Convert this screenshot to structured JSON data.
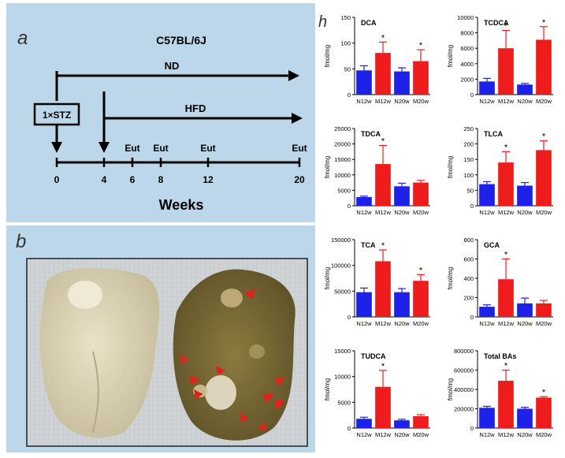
{
  "panel_a": {
    "letter": "a",
    "strain": "C57BL/6J",
    "nd_label": "ND",
    "hfd_label": "HFD",
    "stz_label": "1×STZ",
    "eut_label": "Eut",
    "weeks_label": "Weeks",
    "ticks": [
      "0",
      "4",
      "6",
      "8",
      "12",
      "20"
    ],
    "colors": {
      "background": "#bcd6ea",
      "line": "#000000"
    }
  },
  "panel_b": {
    "letter": "b",
    "arrow_color": "#e0241c"
  },
  "panel_h": {
    "letter": "h"
  },
  "chart_data": [
    {
      "type": "bar",
      "title": "DCA",
      "ylabel": "fmol/mg",
      "categories": [
        "N12w",
        "M12w",
        "N20w",
        "M20w"
      ],
      "values": [
        47,
        81,
        45,
        65
      ],
      "errors": [
        9,
        21,
        7,
        22
      ],
      "significant": [
        false,
        true,
        false,
        true
      ],
      "ylim": [
        0,
        150
      ],
      "yticks": [
        "0",
        "50",
        "100",
        "150"
      ]
    },
    {
      "type": "bar",
      "title": "TCDCA",
      "ylabel": "fmol/mg",
      "categories": [
        "N12w",
        "M12w",
        "N20w",
        "M20w"
      ],
      "values": [
        1700,
        6000,
        1300,
        7100
      ],
      "errors": [
        400,
        2300,
        150,
        1700
      ],
      "significant": [
        false,
        true,
        false,
        true
      ],
      "ylim": [
        0,
        10000
      ],
      "yticks": [
        "0",
        "2000",
        "4000",
        "6000",
        "8000",
        "10000"
      ]
    },
    {
      "type": "bar",
      "title": "TDCA",
      "ylabel": "fmol/mg",
      "categories": [
        "N12w",
        "M12w",
        "N20w",
        "M20w"
      ],
      "values": [
        2800,
        13500,
        6300,
        7500
      ],
      "errors": [
        300,
        6000,
        1000,
        700
      ],
      "significant": [
        false,
        true,
        false,
        false
      ],
      "ylim": [
        0,
        25000
      ],
      "yticks": [
        "0",
        "5000",
        "10000",
        "15000",
        "20000",
        "25000"
      ]
    },
    {
      "type": "bar",
      "title": "TLCA",
      "ylabel": "fmol/mg",
      "categories": [
        "N12w",
        "M12w",
        "N20w",
        "M20w"
      ],
      "values": [
        70,
        140,
        65,
        180
      ],
      "errors": [
        8,
        35,
        10,
        30
      ],
      "significant": [
        false,
        true,
        false,
        true
      ],
      "ylim": [
        0,
        250
      ],
      "yticks": [
        "0",
        "50",
        "100",
        "150",
        "200",
        "250"
      ]
    },
    {
      "type": "bar",
      "title": "TCA",
      "ylabel": "fmol/mg",
      "categories": [
        "N12w",
        "M12w",
        "N20w",
        "M20w"
      ],
      "values": [
        48000,
        108000,
        48000,
        70000
      ],
      "errors": [
        8000,
        22000,
        7000,
        12000
      ],
      "significant": [
        false,
        true,
        false,
        true
      ],
      "ylim": [
        0,
        150000
      ],
      "yticks": [
        "0",
        "50000",
        "100000",
        "150000"
      ]
    },
    {
      "type": "bar",
      "title": "GCA",
      "ylabel": "fmol/mg",
      "categories": [
        "N12w",
        "M12w",
        "N20w",
        "M20w"
      ],
      "values": [
        105,
        390,
        140,
        140
      ],
      "errors": [
        20,
        210,
        55,
        30
      ],
      "significant": [
        false,
        true,
        false,
        false
      ],
      "ylim": [
        0,
        800
      ],
      "yticks": [
        "0",
        "200",
        "400",
        "600",
        "800"
      ]
    },
    {
      "type": "bar",
      "title": "TUDCA",
      "ylabel": "fmol/mg",
      "categories": [
        "N12w",
        "M12w",
        "N20w",
        "M20w"
      ],
      "values": [
        1800,
        8000,
        1500,
        2300
      ],
      "errors": [
        300,
        3200,
        200,
        300
      ],
      "significant": [
        false,
        true,
        false,
        false
      ],
      "ylim": [
        0,
        15000
      ],
      "yticks": [
        "0",
        "5000",
        "10000",
        "15000"
      ]
    },
    {
      "type": "bar",
      "title": "Total BAs",
      "ylabel": "fmol/mg",
      "categories": [
        "N12w",
        "M12w",
        "N20w",
        "M20w"
      ],
      "values": [
        210000,
        490000,
        200000,
        315000
      ],
      "errors": [
        15000,
        110000,
        15000,
        10000
      ],
      "significant": [
        false,
        true,
        false,
        true
      ],
      "ylim": [
        0,
        800000
      ],
      "yticks": [
        "0",
        "200000",
        "400000",
        "600000",
        "800000"
      ]
    }
  ],
  "bar_colors": {
    "normal": "#1e22e8",
    "model": "#ee1c1c"
  },
  "significance_mark": "*"
}
